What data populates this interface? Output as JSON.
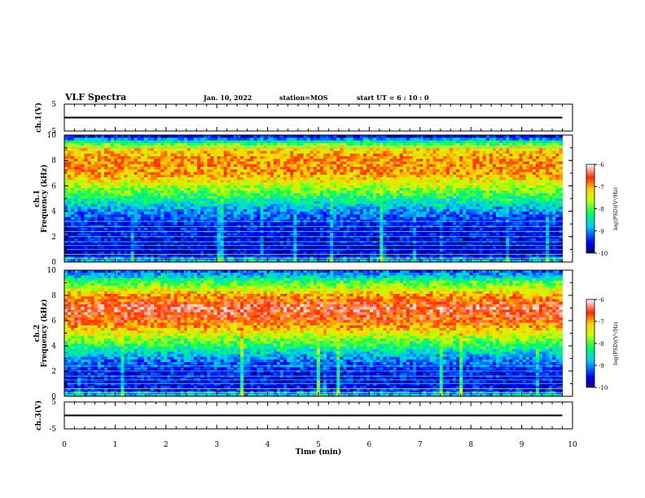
{
  "header": {
    "title": "VLF Spectra",
    "date": "Jan. 10, 2022",
    "station": "station=MOS",
    "start": "start UT =  6 : 10 : 0"
  },
  "chart_data": [
    {
      "type": "line",
      "panel": "ch1-waveform",
      "ylabel": "ch.1(V)",
      "ylim": [
        -5,
        5
      ],
      "yticks": [
        "5",
        "-5"
      ],
      "series": [
        {
          "x": [
            0,
            9.8
          ],
          "values": [
            0,
            0
          ]
        }
      ]
    },
    {
      "type": "heatmap",
      "panel": "ch1-spectrogram",
      "ylabel_channel": "ch.1",
      "ylabel": "Frequency (kHz)",
      "ylim": [
        0,
        10
      ],
      "yticks": [
        "0",
        "2",
        "4",
        "6",
        "8",
        "10"
      ],
      "data_extent_min": [
        0,
        9.8
      ],
      "colorbar": {
        "label": "log(PSD)(V²/Hz)",
        "range": [
          -10,
          -6
        ],
        "ticks": [
          "-6",
          "-7",
          "-8",
          "-9",
          "-10"
        ]
      },
      "band_profile": {
        "freq_khz": [
          0,
          0.5,
          1,
          2,
          3,
          4,
          5,
          6,
          7,
          8,
          9,
          9.5,
          10
        ],
        "log_psd": [
          -8.6,
          -9.6,
          -9.7,
          -9.6,
          -9.5,
          -9.0,
          -8.3,
          -7.6,
          -7.0,
          -6.9,
          -7.3,
          -8.5,
          -9.8
        ]
      },
      "lines_khz": [
        0.3,
        0.6,
        1.0,
        1.3,
        1.6,
        2.0,
        2.4,
        2.8,
        3.2,
        9.0
      ]
    },
    {
      "type": "heatmap",
      "panel": "ch2-spectrogram",
      "ylabel_channel": "ch.2",
      "ylabel": "Frequency (kHz)",
      "ylim": [
        0,
        10
      ],
      "yticks": [
        "0",
        "2",
        "4",
        "6",
        "8",
        "10"
      ],
      "data_extent_min": [
        0,
        9.8
      ],
      "colorbar": {
        "label": "log(PSD)(V²/Hz)",
        "range": [
          -10,
          -6
        ],
        "ticks": [
          "-6",
          "-7",
          "-8",
          "-9",
          "-10"
        ]
      },
      "band_profile": {
        "freq_khz": [
          0,
          0.5,
          1,
          2,
          3,
          4,
          5,
          6,
          7,
          8,
          9,
          9.5,
          10
        ],
        "log_psd": [
          -8.5,
          -9.5,
          -9.6,
          -9.5,
          -9.0,
          -8.2,
          -7.4,
          -6.7,
          -6.4,
          -7.0,
          -8.0,
          -8.7,
          -9.3
        ]
      },
      "lines_khz": [
        0.3,
        0.6,
        1.0,
        1.3,
        1.6,
        2.0,
        2.4
      ]
    },
    {
      "type": "line",
      "panel": "ch3-waveform",
      "ylabel": "ch.3(V)",
      "ylim": [
        -5,
        5
      ],
      "yticks": [
        "5",
        "-5"
      ],
      "xlabel": "Time (min)",
      "xlim": [
        0,
        10
      ],
      "xticks": [
        "0",
        "1",
        "2",
        "3",
        "4",
        "5",
        "6",
        "7",
        "8",
        "9",
        "10"
      ],
      "series": [
        {
          "x": [
            0,
            9.8
          ],
          "values": [
            0,
            0
          ]
        }
      ]
    }
  ]
}
